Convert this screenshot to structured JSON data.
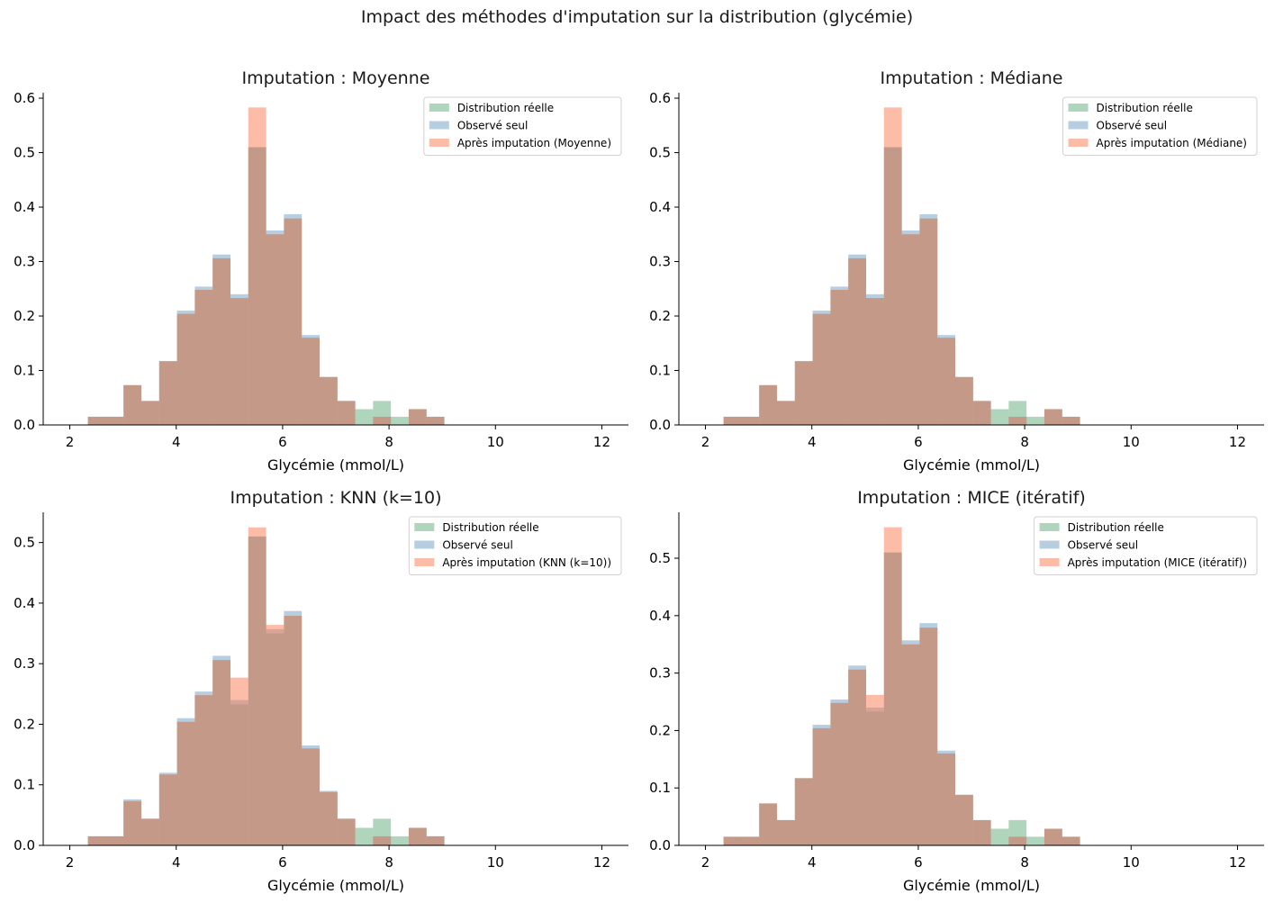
{
  "figure": {
    "suptitle": "Impact des méthodes d'imputation sur la distribution (glycémie)"
  },
  "colors": {
    "reelle": "#5fab7c",
    "observe": "#6f9dc4",
    "impute": "#fc7a50",
    "overlap": "#b08672"
  },
  "chart_data": [
    {
      "type": "bar",
      "title": "Imputation : Moyenne",
      "xlabel": "Glycémie (mmol/L)",
      "ylabel": "",
      "xlim": [
        1.5,
        12.5
      ],
      "ylim": [
        0,
        0.61
      ],
      "xticks": [
        2,
        4,
        6,
        8,
        10,
        12
      ],
      "yticks": [
        0.0,
        0.1,
        0.2,
        0.3,
        0.4,
        0.5,
        0.6
      ],
      "legend_position": "top-right",
      "bin_start": 2.34,
      "bin_width": 0.335,
      "series": [
        {
          "name": "Distribution réelle",
          "values": [
            0.015,
            0.015,
            0.073,
            0.044,
            0.117,
            0.204,
            0.248,
            0.306,
            0.233,
            0.51,
            0.35,
            0.379,
            0.16,
            0.088,
            0.044,
            0.029,
            0.044,
            0.015,
            0.029,
            0.015,
            0,
            0,
            0,
            0,
            0,
            0,
            0
          ]
        },
        {
          "name": "Observé seul",
          "values": [
            0.015,
            0.015,
            0.073,
            0.044,
            0.117,
            0.21,
            0.254,
            0.313,
            0.24,
            0.51,
            0.357,
            0.387,
            0.165,
            0.088,
            0.044,
            0,
            0.015,
            0,
            0.029,
            0.015,
            0,
            0,
            0,
            0,
            0,
            0,
            0
          ]
        },
        {
          "name": "Après imputation (Moyenne)",
          "values": [
            0.015,
            0.015,
            0.073,
            0.044,
            0.117,
            0.204,
            0.248,
            0.306,
            0.233,
            0.583,
            0.35,
            0.379,
            0.16,
            0.088,
            0.044,
            0,
            0.015,
            0,
            0.029,
            0.015,
            0,
            0,
            0,
            0,
            0,
            0,
            0
          ]
        }
      ]
    },
    {
      "type": "bar",
      "title": "Imputation : Médiane",
      "xlabel": "Glycémie (mmol/L)",
      "ylabel": "",
      "xlim": [
        1.5,
        12.5
      ],
      "ylim": [
        0,
        0.61
      ],
      "xticks": [
        2,
        4,
        6,
        8,
        10,
        12
      ],
      "yticks": [
        0.0,
        0.1,
        0.2,
        0.3,
        0.4,
        0.5,
        0.6
      ],
      "legend_position": "top-right",
      "bin_start": 2.34,
      "bin_width": 0.335,
      "series": [
        {
          "name": "Distribution réelle",
          "values": [
            0.015,
            0.015,
            0.073,
            0.044,
            0.117,
            0.204,
            0.248,
            0.306,
            0.233,
            0.51,
            0.35,
            0.379,
            0.16,
            0.088,
            0.044,
            0.029,
            0.044,
            0.015,
            0.029,
            0.015,
            0,
            0,
            0,
            0,
            0,
            0,
            0
          ]
        },
        {
          "name": "Observé seul",
          "values": [
            0.015,
            0.015,
            0.073,
            0.044,
            0.117,
            0.21,
            0.254,
            0.313,
            0.24,
            0.51,
            0.357,
            0.387,
            0.165,
            0.088,
            0.044,
            0,
            0.015,
            0,
            0.029,
            0.015,
            0,
            0,
            0,
            0,
            0,
            0,
            0
          ]
        },
        {
          "name": "Après imputation (Médiane)",
          "values": [
            0.015,
            0.015,
            0.073,
            0.044,
            0.117,
            0.204,
            0.248,
            0.306,
            0.233,
            0.583,
            0.35,
            0.379,
            0.16,
            0.088,
            0.044,
            0,
            0.015,
            0,
            0.029,
            0.015,
            0,
            0,
            0,
            0,
            0,
            0,
            0
          ]
        }
      ]
    },
    {
      "type": "bar",
      "title": "Imputation : KNN (k=10)",
      "xlabel": "Glycémie (mmol/L)",
      "ylabel": "",
      "xlim": [
        1.5,
        12.5
      ],
      "ylim": [
        0,
        0.55
      ],
      "xticks": [
        2,
        4,
        6,
        8,
        10,
        12
      ],
      "yticks": [
        0.0,
        0.1,
        0.2,
        0.3,
        0.4,
        0.5
      ],
      "legend_position": "top-right",
      "bin_start": 2.34,
      "bin_width": 0.335,
      "series": [
        {
          "name": "Distribution réelle",
          "values": [
            0.015,
            0.015,
            0.073,
            0.044,
            0.117,
            0.204,
            0.248,
            0.306,
            0.233,
            0.51,
            0.35,
            0.379,
            0.16,
            0.088,
            0.044,
            0.029,
            0.044,
            0.015,
            0.029,
            0.015,
            0,
            0,
            0,
            0,
            0,
            0,
            0
          ]
        },
        {
          "name": "Observé seul",
          "values": [
            0.015,
            0.015,
            0.076,
            0.044,
            0.12,
            0.21,
            0.254,
            0.313,
            0.24,
            0.51,
            0.357,
            0.387,
            0.165,
            0.09,
            0.044,
            0,
            0.015,
            0,
            0.029,
            0.015,
            0,
            0,
            0,
            0,
            0,
            0,
            0
          ]
        },
        {
          "name": "Après imputation (KNN (k=10))",
          "values": [
            0.015,
            0.015,
            0.073,
            0.044,
            0.117,
            0.204,
            0.248,
            0.306,
            0.277,
            0.525,
            0.364,
            0.379,
            0.16,
            0.088,
            0.044,
            0,
            0.015,
            0,
            0.029,
            0.015,
            0,
            0,
            0,
            0,
            0,
            0,
            0
          ]
        }
      ]
    },
    {
      "type": "bar",
      "title": "Imputation : MICE (itératif)",
      "xlabel": "Glycémie (mmol/L)",
      "ylabel": "",
      "xlim": [
        1.5,
        12.5
      ],
      "ylim": [
        0,
        0.58
      ],
      "xticks": [
        2,
        4,
        6,
        8,
        10,
        12
      ],
      "yticks": [
        0.0,
        0.1,
        0.2,
        0.3,
        0.4,
        0.5
      ],
      "legend_position": "top-right",
      "bin_start": 2.34,
      "bin_width": 0.335,
      "series": [
        {
          "name": "Distribution réelle",
          "values": [
            0.015,
            0.015,
            0.073,
            0.044,
            0.117,
            0.204,
            0.248,
            0.306,
            0.233,
            0.51,
            0.35,
            0.379,
            0.16,
            0.088,
            0.044,
            0.029,
            0.044,
            0.015,
            0.029,
            0.015,
            0,
            0,
            0,
            0,
            0,
            0,
            0
          ]
        },
        {
          "name": "Observé seul",
          "values": [
            0.015,
            0.015,
            0.073,
            0.044,
            0.117,
            0.21,
            0.254,
            0.313,
            0.24,
            0.51,
            0.357,
            0.387,
            0.165,
            0.088,
            0.044,
            0,
            0.015,
            0,
            0.029,
            0.015,
            0,
            0,
            0,
            0,
            0,
            0,
            0
          ]
        },
        {
          "name": "Après imputation (MICE (itératif))",
          "values": [
            0.015,
            0.015,
            0.073,
            0.044,
            0.117,
            0.204,
            0.248,
            0.306,
            0.262,
            0.554,
            0.35,
            0.379,
            0.16,
            0.088,
            0.044,
            0,
            0.015,
            0,
            0.029,
            0.015,
            0,
            0,
            0,
            0,
            0,
            0,
            0
          ]
        }
      ]
    }
  ]
}
